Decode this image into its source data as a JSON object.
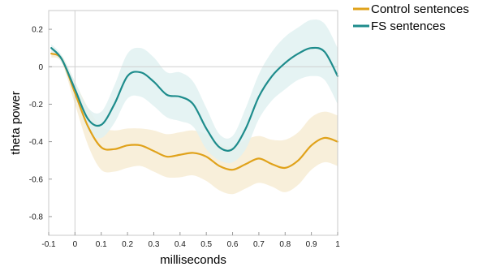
{
  "chart_data": {
    "type": "line",
    "xlabel": "milliseconds",
    "ylabel": "theta power",
    "xlim": [
      -0.1,
      1.0
    ],
    "ylim": [
      -0.9,
      0.3
    ],
    "xticks": [
      -0.1,
      0,
      0.1,
      0.2,
      0.3,
      0.4,
      0.5,
      0.6,
      0.7,
      0.8,
      0.9,
      1
    ],
    "xtick_labels": [
      "-0.1",
      "0",
      "0.1",
      "0.2",
      "0.3",
      "0.4",
      "0.5",
      "0.6",
      "0.7",
      "0.8",
      "0.9",
      "1"
    ],
    "yticks": [
      0.2,
      0,
      -0.2,
      -0.4,
      -0.6,
      -0.8
    ],
    "ytick_labels": [
      "0.2",
      "0",
      "-0.2",
      "-0.4",
      "-0.6",
      "-0.8"
    ],
    "reference_lines": {
      "y": 0,
      "x": 0
    },
    "grid": false,
    "legend_position": "outside-top-right",
    "series": [
      {
        "name": "Control sentences",
        "color": "#e0a21a",
        "band_color": "#f7ecd4",
        "x": [
          -0.09,
          -0.05,
          0,
          0.05,
          0.1,
          0.15,
          0.2,
          0.25,
          0.3,
          0.35,
          0.4,
          0.45,
          0.5,
          0.55,
          0.6,
          0.65,
          0.7,
          0.75,
          0.8,
          0.85,
          0.9,
          0.95,
          1.0
        ],
        "values": [
          0.07,
          0.04,
          -0.14,
          -0.32,
          -0.43,
          -0.44,
          -0.42,
          -0.42,
          -0.45,
          -0.48,
          -0.47,
          -0.46,
          -0.48,
          -0.53,
          -0.55,
          -0.52,
          -0.49,
          -0.52,
          -0.54,
          -0.5,
          -0.42,
          -0.38,
          -0.4
        ],
        "upper": [
          0.09,
          0.06,
          -0.08,
          -0.22,
          -0.32,
          -0.34,
          -0.33,
          -0.33,
          -0.34,
          -0.36,
          -0.35,
          -0.34,
          -0.36,
          -0.41,
          -0.43,
          -0.39,
          -0.37,
          -0.39,
          -0.39,
          -0.35,
          -0.27,
          -0.24,
          -0.26
        ],
        "lower": [
          0.05,
          0.02,
          -0.2,
          -0.42,
          -0.55,
          -0.56,
          -0.54,
          -0.53,
          -0.56,
          -0.59,
          -0.59,
          -0.58,
          -0.61,
          -0.66,
          -0.68,
          -0.65,
          -0.62,
          -0.64,
          -0.67,
          -0.63,
          -0.55,
          -0.51,
          -0.53
        ]
      },
      {
        "name": "FS sentences",
        "color": "#1e8c8c",
        "band_color": "#e0f1f1",
        "x": [
          -0.09,
          -0.05,
          0,
          0.05,
          0.1,
          0.15,
          0.2,
          0.25,
          0.3,
          0.35,
          0.4,
          0.45,
          0.5,
          0.55,
          0.6,
          0.65,
          0.7,
          0.75,
          0.8,
          0.85,
          0.9,
          0.95,
          1.0
        ],
        "values": [
          0.1,
          0.04,
          -0.12,
          -0.28,
          -0.31,
          -0.2,
          -0.05,
          -0.03,
          -0.08,
          -0.15,
          -0.16,
          -0.2,
          -0.33,
          -0.43,
          -0.44,
          -0.33,
          -0.16,
          -0.05,
          0.02,
          0.07,
          0.1,
          0.08,
          -0.05
        ],
        "upper": [
          0.12,
          0.06,
          -0.08,
          -0.22,
          -0.24,
          -0.1,
          0.07,
          0.1,
          0.05,
          -0.03,
          -0.03,
          -0.08,
          -0.22,
          -0.36,
          -0.37,
          -0.22,
          -0.04,
          0.08,
          0.16,
          0.21,
          0.25,
          0.23,
          0.1
        ],
        "lower": [
          0.08,
          0.02,
          -0.16,
          -0.34,
          -0.38,
          -0.3,
          -0.17,
          -0.16,
          -0.21,
          -0.27,
          -0.29,
          -0.32,
          -0.44,
          -0.5,
          -0.51,
          -0.44,
          -0.28,
          -0.18,
          -0.12,
          -0.07,
          -0.05,
          -0.07,
          -0.2
        ]
      }
    ]
  }
}
